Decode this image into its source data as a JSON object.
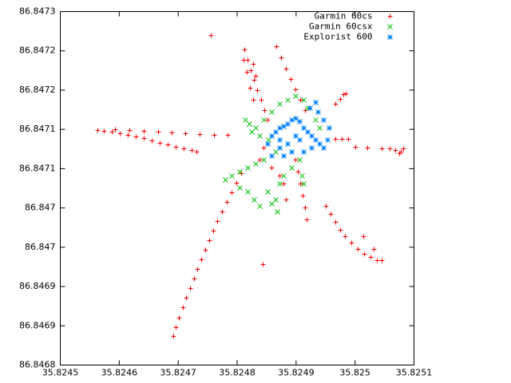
{
  "chart_data": {
    "type": "scatter",
    "xlim": [
      35.8245,
      35.8251
    ],
    "xticks": [
      35.8245,
      35.8246,
      35.8247,
      35.8248,
      35.8249,
      35.825,
      35.8251
    ],
    "ylim": [
      86.8468,
      86.84725
    ],
    "yticks": [
      86.8468,
      {
        "value": 86.84685,
        "label": "86.8469"
      },
      86.8469,
      {
        "value": 86.84695,
        "label": "86.847"
      },
      86.847,
      {
        "value": 86.84705,
        "label": "86.8471"
      },
      86.8471,
      {
        "value": 86.84715,
        "label": "86.8472"
      },
      86.8472,
      {
        "value": 86.84725,
        "label": "86.8473"
      }
    ],
    "legend": "top-right",
    "series": [
      {
        "name": "Garmin 60cs",
        "color": "#ff0000",
        "marker": "plus",
        "x": [
          35.8245637,
          35.8245745,
          35.824588,
          35.8246016,
          35.8246151,
          35.8246287,
          35.8246422,
          35.8246558,
          35.8246693,
          35.8246828,
          35.8246964,
          35.8247099,
          35.8247235,
          35.8247316,
          35.8245935,
          35.8246178,
          35.8246422,
          35.8246666,
          35.8246896,
          35.8247126,
          35.824737,
          35.8247614,
          35.8247844,
          35.824756,
          35.824844,
          35.8246923,
          35.8246964,
          35.8247018,
          35.8247086,
          35.824714,
          35.8247208,
          35.8247275,
          35.824733,
          35.8247397,
          35.8247465,
          35.8247533,
          35.82476,
          35.8247668,
          35.8247749,
          35.8247831,
          35.8247912,
          35.8247993,
          35.8248074,
          35.8248129,
          35.8248183,
          35.8248237,
          35.8248291,
          35.8248345,
          35.8248413,
          35.8248467,
          35.8248521,
          35.8248115,
          35.8248169,
          35.8248223,
          35.8248278,
          35.824867,
          35.8248752,
          35.8248833,
          35.8248914,
          35.8248995,
          35.8249077,
          35.8249158,
          35.8248278,
          35.8248318,
          35.8249808,
          35.8249754,
          35.8249673,
          35.8249849,
          35.8250458,
          35.8250594,
          35.8250688,
          35.8250783,
          35.8250824,
          35.8250756,
          35.8249673,
          35.8249781,
          35.8249889,
          35.8250011,
          35.8250214,
          35.824951,
          35.8249591,
          35.8249673,
          35.8249754,
          35.8249835,
          35.8249944,
          35.8250052,
          35.825016,
          35.8250269,
          35.8250377,
          35.8250458,
          35.8250323,
          35.8250147,
          35.8248995,
          35.8249036,
          35.8249077,
          35.8249117,
          35.8249158,
          35.8249185,
          35.8248792,
          35.8248833,
          35.8248386,
          35.8248589,
          35.8248725,
          35.8248454
        ],
        "y": [
          86.8470986,
          86.8470976,
          86.8470966,
          86.8470946,
          86.8470926,
          86.8470905,
          86.8470885,
          86.8470854,
          86.8470824,
          86.8470804,
          86.8470773,
          86.8470753,
          86.8470733,
          86.8470712,
          86.8470997,
          86.8470986,
          86.8470976,
          86.8470966,
          86.8470956,
          86.8470946,
          86.8470936,
          86.8470926,
          86.8470926,
          86.8472195,
          86.846928,
          86.8468366,
          86.8468477,
          86.8468599,
          86.8468731,
          86.8468853,
          86.8468975,
          86.8469097,
          86.8469219,
          86.8469341,
          86.8469463,
          86.8469585,
          86.8469707,
          86.8469828,
          86.846995,
          86.8470072,
          86.8470194,
          86.8470316,
          86.8470438,
          86.8472012,
          86.847188,
          86.8471748,
          86.8471626,
          86.8471494,
          86.8471372,
          86.847124,
          86.8471119,
          86.847188,
          86.8471728,
          86.8471525,
          86.8471372,
          86.8472053,
          86.8471911,
          86.8471769,
          86.8471637,
          86.8471505,
          86.8471372,
          86.847124,
          86.847183,
          86.8471677,
          86.8471444,
          86.8471383,
          86.8471322,
          86.8471454,
          86.8470753,
          86.8470753,
          86.8470733,
          86.8470712,
          86.8470753,
          86.8470692,
          86.8470875,
          86.8470875,
          86.8470875,
          86.8470773,
          86.8470763,
          86.8470021,
          86.846992,
          86.8469818,
          86.8469717,
          86.8469635,
          86.8469554,
          86.8469473,
          86.8469412,
          86.8469371,
          86.8469331,
          86.8469331,
          86.8469473,
          86.8469635,
          86.8470611,
          86.8470458,
          86.8470306,
          86.8470153,
          86.8470001,
          86.8469849,
          86.8470306,
          86.8470103,
          86.8470611,
          86.8470509,
          86.8470407,
          86.8470763
        ]
      },
      {
        "name": "Garmin 60csx",
        "color": "#00c000",
        "marker": "cross",
        "x": [
          35.8248047,
          35.8247912,
          35.8247804,
          35.8248183,
          35.8248318,
          35.8248454,
          35.8248047,
          35.8248183,
          35.8248291,
          35.8248386,
          35.8248589,
          35.8248684,
          35.8248657,
          35.8248521,
          35.8248725,
          35.8248142,
          35.824821,
          35.8248318,
          35.8248454,
          35.8248589,
          35.8248725,
          35.824886,
          35.8248995,
          35.8249131,
          35.8249199,
          35.8249334,
          35.8249402,
          35.8249063,
          35.8249104,
          35.8249131,
          35.8248928,
          35.8248792,
          35.8248657,
          35.8248535,
          35.8248386,
          35.8248251
        ],
        "y": [
          86.8470458,
          86.8470407,
          86.8470357,
          86.8470509,
          86.847056,
          86.8470611,
          86.8470255,
          86.8470204,
          86.8470103,
          86.8470021,
          86.8470052,
          86.846995,
          86.8470103,
          86.8470204,
          86.8470306,
          86.8471119,
          86.8471068,
          86.8471017,
          86.8471119,
          86.847122,
          86.8471322,
          86.8471372,
          86.8471423,
          86.8471372,
          86.8471271,
          86.8471119,
          86.8471017,
          86.8470611,
          86.8470407,
          86.8470306,
          86.8470509,
          86.8470407,
          86.8470712,
          86.8470865,
          86.8470915,
          86.8470966
        ]
      },
      {
        "name": "Explorist 600",
        "color": "#0080ff",
        "marker": "star",
        "x": [
          35.8248521,
          35.8248589,
          35.8248657,
          35.8248725,
          35.8248792,
          35.824886,
          35.8248928,
          35.8248995,
          35.8249063,
          35.8249131,
          35.8249199,
          35.8249266,
          35.8249334,
          35.8249402,
          35.8249469,
          35.8249537,
          35.8249564,
          35.8249469,
          35.8249375,
          35.8249334,
          35.8249239,
          35.8248995,
          35.824886,
          35.8248725,
          35.8248589,
          35.8248792,
          35.8248928,
          35.8249131,
          35.8249266,
          35.8249063,
          35.8248725
        ],
        "y": [
          86.8470814,
          86.8470915,
          86.8470966,
          86.8471017,
          86.8471037,
          86.8471068,
          86.8471119,
          86.8471139,
          86.8471098,
          86.8471017,
          86.8470966,
          86.8470915,
          86.8470865,
          86.8470814,
          86.8470763,
          86.8470865,
          86.8471017,
          86.8471119,
          86.847122,
          86.8471342,
          86.8471271,
          86.8470915,
          86.8470814,
          86.8470763,
          86.8470661,
          86.8470661,
          86.8470712,
          86.8470712,
          86.8470763,
          86.8470865,
          86.8470865
        ]
      }
    ]
  }
}
